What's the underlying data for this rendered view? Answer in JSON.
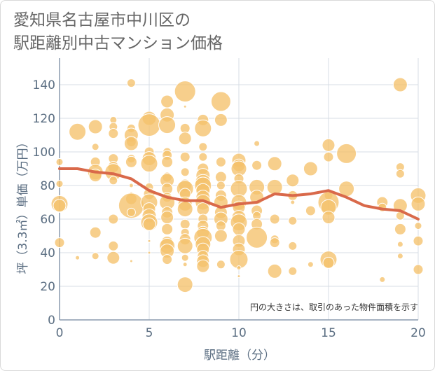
{
  "title_lines": [
    "愛知県名古屋市中川区の",
    "駅距離別中古マンション価格"
  ],
  "note": "円の大きさは、取引のあった物件面積を示す",
  "colors": {
    "bubble": "#f5c26b",
    "line": "#d9694a",
    "grid": "#d7dce4",
    "axis": "#8a9aae"
  },
  "chart_data": {
    "type": "scatter",
    "xlabel": "駅距離（分）",
    "ylabel": "坪（3.3㎡）単価（万円）",
    "xlim": [
      0,
      20
    ],
    "ylim": [
      0,
      150
    ],
    "xticks": [
      0,
      5,
      10,
      15,
      20
    ],
    "yticks": [
      0,
      20,
      40,
      60,
      80,
      100,
      120,
      140
    ],
    "grid": true,
    "series": [
      {
        "kind": "bubble",
        "points": [
          {
            "x": 0,
            "y": 94,
            "s": 5
          },
          {
            "x": 0,
            "y": 81,
            "s": 5
          },
          {
            "x": 0,
            "y": 69,
            "s": 12
          },
          {
            "x": 0,
            "y": 68,
            "s": 9
          },
          {
            "x": 0,
            "y": 46,
            "s": 7
          },
          {
            "x": 1,
            "y": 112,
            "s": 12
          },
          {
            "x": 1,
            "y": 37,
            "s": 3
          },
          {
            "x": 2,
            "y": 115,
            "s": 10
          },
          {
            "x": 2,
            "y": 103,
            "s": 5
          },
          {
            "x": 2,
            "y": 94,
            "s": 7
          },
          {
            "x": 2,
            "y": 88,
            "s": 11
          },
          {
            "x": 2,
            "y": 86,
            "s": 9
          },
          {
            "x": 2,
            "y": 52,
            "s": 8
          },
          {
            "x": 2,
            "y": 38,
            "s": 5
          },
          {
            "x": 3,
            "y": 119,
            "s": 5
          },
          {
            "x": 3,
            "y": 115,
            "s": 6
          },
          {
            "x": 3,
            "y": 111,
            "s": 7
          },
          {
            "x": 3,
            "y": 96,
            "s": 7
          },
          {
            "x": 3,
            "y": 91,
            "s": 8
          },
          {
            "x": 3,
            "y": 88,
            "s": 12
          },
          {
            "x": 3,
            "y": 83,
            "s": 6
          },
          {
            "x": 3,
            "y": 60,
            "s": 7
          },
          {
            "x": 3,
            "y": 44,
            "s": 7
          },
          {
            "x": 3,
            "y": 37,
            "s": 9
          },
          {
            "x": 4,
            "y": 141,
            "s": 6
          },
          {
            "x": 4,
            "y": 114,
            "s": 6
          },
          {
            "x": 4,
            "y": 110,
            "s": 10
          },
          {
            "x": 4,
            "y": 106,
            "s": 7
          },
          {
            "x": 4,
            "y": 105,
            "s": 10
          },
          {
            "x": 4,
            "y": 96,
            "s": 6
          },
          {
            "x": 4,
            "y": 94,
            "s": 8
          },
          {
            "x": 4,
            "y": 80,
            "s": 3
          },
          {
            "x": 4,
            "y": 75,
            "s": 3
          },
          {
            "x": 4,
            "y": 72,
            "s": 8
          },
          {
            "x": 4,
            "y": 68,
            "s": 18
          },
          {
            "x": 4,
            "y": 64,
            "s": 6
          },
          {
            "x": 4,
            "y": 35,
            "s": 2
          },
          {
            "x": 5,
            "y": 120,
            "s": 10
          },
          {
            "x": 5,
            "y": 116,
            "s": 16
          },
          {
            "x": 5,
            "y": 100,
            "s": 7
          },
          {
            "x": 5,
            "y": 96,
            "s": 10
          },
          {
            "x": 5,
            "y": 93,
            "s": 12
          },
          {
            "x": 5,
            "y": 79,
            "s": 6
          },
          {
            "x": 5,
            "y": 75,
            "s": 8
          },
          {
            "x": 5,
            "y": 70,
            "s": 12
          },
          {
            "x": 5,
            "y": 66,
            "s": 9
          },
          {
            "x": 5,
            "y": 62,
            "s": 10
          },
          {
            "x": 5,
            "y": 58,
            "s": 12
          },
          {
            "x": 5,
            "y": 57,
            "s": 9
          },
          {
            "x": 5,
            "y": 47,
            "s": 2
          },
          {
            "x": 5,
            "y": 40,
            "s": 2
          },
          {
            "x": 6,
            "y": 130,
            "s": 9
          },
          {
            "x": 6,
            "y": 122,
            "s": 10
          },
          {
            "x": 6,
            "y": 116,
            "s": 12
          },
          {
            "x": 6,
            "y": 100,
            "s": 6
          },
          {
            "x": 6,
            "y": 98,
            "s": 7
          },
          {
            "x": 6,
            "y": 94,
            "s": 8
          },
          {
            "x": 6,
            "y": 85,
            "s": 7
          },
          {
            "x": 6,
            "y": 83,
            "s": 10
          },
          {
            "x": 6,
            "y": 78,
            "s": 8
          },
          {
            "x": 6,
            "y": 73,
            "s": 7
          },
          {
            "x": 6,
            "y": 70,
            "s": 11
          },
          {
            "x": 6,
            "y": 64,
            "s": 8
          },
          {
            "x": 6,
            "y": 61,
            "s": 9
          },
          {
            "x": 6,
            "y": 54,
            "s": 8
          },
          {
            "x": 6,
            "y": 46,
            "s": 9
          },
          {
            "x": 6,
            "y": 44,
            "s": 11
          },
          {
            "x": 6,
            "y": 41,
            "s": 10
          },
          {
            "x": 6,
            "y": 36,
            "s": 7
          },
          {
            "x": 7,
            "y": 136,
            "s": 15
          },
          {
            "x": 7,
            "y": 127,
            "s": 2
          },
          {
            "x": 7,
            "y": 114,
            "s": 7
          },
          {
            "x": 7,
            "y": 108,
            "s": 9
          },
          {
            "x": 7,
            "y": 97,
            "s": 7
          },
          {
            "x": 7,
            "y": 88,
            "s": 6
          },
          {
            "x": 7,
            "y": 80,
            "s": 9
          },
          {
            "x": 7,
            "y": 78,
            "s": 12
          },
          {
            "x": 7,
            "y": 75,
            "s": 8
          },
          {
            "x": 7,
            "y": 69,
            "s": 10
          },
          {
            "x": 7,
            "y": 66,
            "s": 11
          },
          {
            "x": 7,
            "y": 57,
            "s": 7
          },
          {
            "x": 7,
            "y": 52,
            "s": 6
          },
          {
            "x": 7,
            "y": 48,
            "s": 8
          },
          {
            "x": 7,
            "y": 44,
            "s": 11
          },
          {
            "x": 7,
            "y": 37,
            "s": 5
          },
          {
            "x": 7,
            "y": 33,
            "s": 3
          },
          {
            "x": 7,
            "y": 21,
            "s": 11
          },
          {
            "x": 8,
            "y": 119,
            "s": 8
          },
          {
            "x": 8,
            "y": 114,
            "s": 12
          },
          {
            "x": 8,
            "y": 103,
            "s": 6
          },
          {
            "x": 8,
            "y": 97,
            "s": 6
          },
          {
            "x": 8,
            "y": 90,
            "s": 8
          },
          {
            "x": 8,
            "y": 86,
            "s": 10
          },
          {
            "x": 8,
            "y": 82,
            "s": 11
          },
          {
            "x": 8,
            "y": 80,
            "s": 12
          },
          {
            "x": 8,
            "y": 77,
            "s": 10
          },
          {
            "x": 8,
            "y": 73,
            "s": 10
          },
          {
            "x": 8,
            "y": 70,
            "s": 11
          },
          {
            "x": 8,
            "y": 66,
            "s": 9
          },
          {
            "x": 8,
            "y": 60,
            "s": 7
          },
          {
            "x": 8,
            "y": 56,
            "s": 8
          },
          {
            "x": 8,
            "y": 52,
            "s": 9
          },
          {
            "x": 8,
            "y": 49,
            "s": 13
          },
          {
            "x": 8,
            "y": 45,
            "s": 11
          },
          {
            "x": 8,
            "y": 42,
            "s": 9
          },
          {
            "x": 8,
            "y": 38,
            "s": 8
          },
          {
            "x": 8,
            "y": 35,
            "s": 9
          },
          {
            "x": 8,
            "y": 32,
            "s": 9
          },
          {
            "x": 9,
            "y": 130,
            "s": 14
          },
          {
            "x": 9,
            "y": 119,
            "s": 9
          },
          {
            "x": 9,
            "y": 94,
            "s": 7
          },
          {
            "x": 9,
            "y": 85,
            "s": 8
          },
          {
            "x": 9,
            "y": 80,
            "s": 6
          },
          {
            "x": 9,
            "y": 74,
            "s": 8
          },
          {
            "x": 9,
            "y": 70,
            "s": 10
          },
          {
            "x": 9,
            "y": 64,
            "s": 9
          },
          {
            "x": 9,
            "y": 60,
            "s": 10
          },
          {
            "x": 9,
            "y": 56,
            "s": 7
          },
          {
            "x": 9,
            "y": 50,
            "s": 9
          },
          {
            "x": 9,
            "y": 33,
            "s": 6
          },
          {
            "x": 10,
            "y": 95,
            "s": 10
          },
          {
            "x": 10,
            "y": 92,
            "s": 9
          },
          {
            "x": 10,
            "y": 90,
            "s": 11
          },
          {
            "x": 10,
            "y": 84,
            "s": 7
          },
          {
            "x": 10,
            "y": 78,
            "s": 12
          },
          {
            "x": 10,
            "y": 70,
            "s": 11
          },
          {
            "x": 10,
            "y": 67,
            "s": 9
          },
          {
            "x": 10,
            "y": 61,
            "s": 10
          },
          {
            "x": 10,
            "y": 58,
            "s": 12
          },
          {
            "x": 10,
            "y": 54,
            "s": 9
          },
          {
            "x": 10,
            "y": 47,
            "s": 9
          },
          {
            "x": 10,
            "y": 42,
            "s": 9
          },
          {
            "x": 10,
            "y": 36,
            "s": 13
          },
          {
            "x": 10,
            "y": 31,
            "s": 3
          },
          {
            "x": 10,
            "y": 26,
            "s": 2
          },
          {
            "x": 11,
            "y": 105,
            "s": 4
          },
          {
            "x": 11,
            "y": 92,
            "s": 7
          },
          {
            "x": 11,
            "y": 79,
            "s": 11
          },
          {
            "x": 11,
            "y": 73,
            "s": 10
          },
          {
            "x": 11,
            "y": 65,
            "s": 8
          },
          {
            "x": 11,
            "y": 62,
            "s": 6
          },
          {
            "x": 11,
            "y": 57,
            "s": 8
          },
          {
            "x": 11,
            "y": 49,
            "s": 15
          },
          {
            "x": 12,
            "y": 93,
            "s": 10
          },
          {
            "x": 12,
            "y": 79,
            "s": 11
          },
          {
            "x": 12,
            "y": 60,
            "s": 7
          },
          {
            "x": 12,
            "y": 48,
            "s": 6
          },
          {
            "x": 12,
            "y": 46,
            "s": 7
          },
          {
            "x": 12,
            "y": 29,
            "s": 10
          },
          {
            "x": 13,
            "y": 83,
            "s": 9
          },
          {
            "x": 13,
            "y": 74,
            "s": 7
          },
          {
            "x": 13,
            "y": 70,
            "s": 3
          },
          {
            "x": 13,
            "y": 59,
            "s": 6
          },
          {
            "x": 13,
            "y": 44,
            "s": 6
          },
          {
            "x": 13,
            "y": 29,
            "s": 6
          },
          {
            "x": 14,
            "y": 90,
            "s": 10
          },
          {
            "x": 14,
            "y": 65,
            "s": 7
          },
          {
            "x": 14,
            "y": 33,
            "s": 4
          },
          {
            "x": 15,
            "y": 104,
            "s": 9
          },
          {
            "x": 15,
            "y": 97,
            "s": 7
          },
          {
            "x": 15,
            "y": 74,
            "s": 6
          },
          {
            "x": 15,
            "y": 70,
            "s": 15
          },
          {
            "x": 15,
            "y": 67,
            "s": 11
          },
          {
            "x": 15,
            "y": 61,
            "s": 9
          },
          {
            "x": 15,
            "y": 36,
            "s": 12
          },
          {
            "x": 15,
            "y": 34,
            "s": 8
          },
          {
            "x": 16,
            "y": 99,
            "s": 14
          },
          {
            "x": 16,
            "y": 78,
            "s": 11
          },
          {
            "x": 18,
            "y": 70,
            "s": 8
          },
          {
            "x": 18,
            "y": 67,
            "s": 6
          },
          {
            "x": 18,
            "y": 24,
            "s": 4
          },
          {
            "x": 19,
            "y": 140,
            "s": 10
          },
          {
            "x": 19,
            "y": 91,
            "s": 6
          },
          {
            "x": 19,
            "y": 87,
            "s": 6
          },
          {
            "x": 19,
            "y": 68,
            "s": 10
          },
          {
            "x": 19,
            "y": 62,
            "s": 6
          },
          {
            "x": 19,
            "y": 54,
            "s": 8
          },
          {
            "x": 19,
            "y": 45,
            "s": 4
          },
          {
            "x": 19,
            "y": 38,
            "s": 4
          },
          {
            "x": 20,
            "y": 74,
            "s": 11
          },
          {
            "x": 20,
            "y": 69,
            "s": 10
          },
          {
            "x": 20,
            "y": 56,
            "s": 5
          },
          {
            "x": 20,
            "y": 47,
            "s": 7
          },
          {
            "x": 20,
            "y": 30,
            "s": 7
          }
        ]
      },
      {
        "kind": "trend",
        "x": [
          0,
          1,
          2,
          3,
          4,
          5,
          6,
          7,
          8,
          9,
          10,
          11,
          12,
          13,
          14,
          15,
          16,
          17,
          18,
          19,
          20
        ],
        "values": [
          90,
          90,
          88,
          87,
          84,
          77,
          73,
          71,
          71,
          67,
          69,
          70,
          75,
          74,
          75,
          77,
          73,
          68,
          66,
          65,
          60
        ]
      }
    ]
  }
}
